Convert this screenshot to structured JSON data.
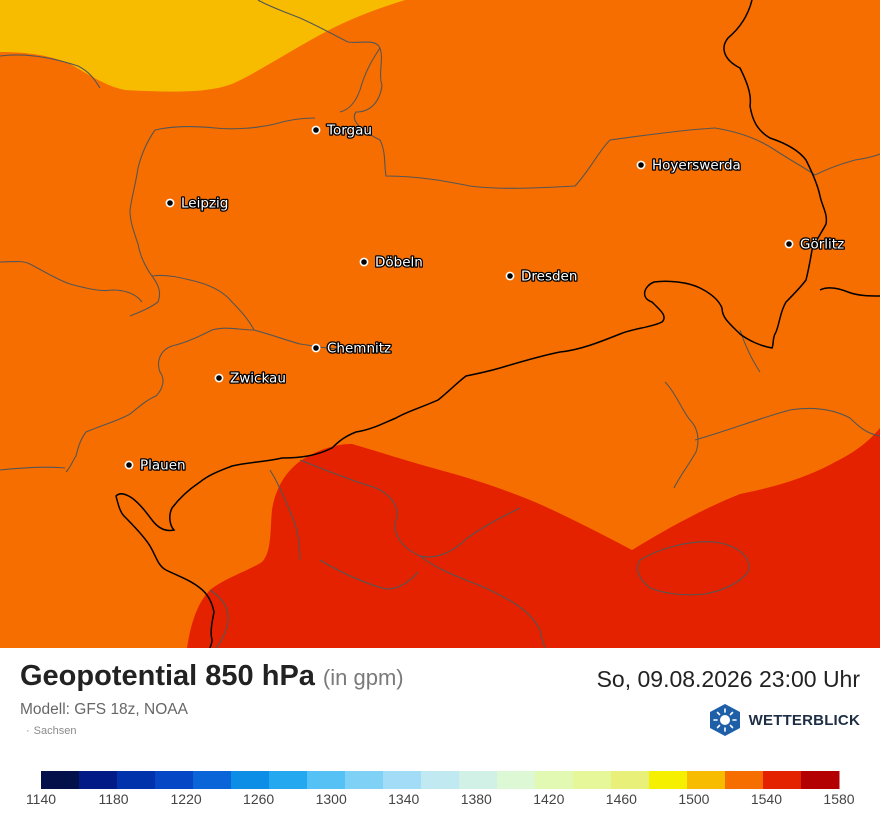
{
  "map": {
    "cities": [
      {
        "name": "Torgau",
        "pos": [
          316,
          130
        ]
      },
      {
        "name": "Hoyerswerda",
        "pos": [
          641,
          165
        ]
      },
      {
        "name": "Leipzig",
        "pos": [
          170,
          203
        ]
      },
      {
        "name": "Görlitz",
        "pos": [
          789,
          244
        ]
      },
      {
        "name": "Döbeln",
        "pos": [
          364,
          262
        ]
      },
      {
        "name": "Dresden",
        "pos": [
          510,
          276
        ]
      },
      {
        "name": "Chemnitz",
        "pos": [
          316,
          348
        ]
      },
      {
        "name": "Zwickau",
        "pos": [
          219,
          378
        ]
      },
      {
        "name": "Plauen",
        "pos": [
          129,
          465
        ]
      }
    ],
    "field_colors": {
      "band_1500_1520": "#f7bb00",
      "band_1520_1540": "#f76e00",
      "band_1540_1560": "#e52200"
    }
  },
  "footer": {
    "title": "Geopotential 850 hPa",
    "unit": "(in gpm)",
    "datetime": "So, 09.08.2026 23:00 Uhr",
    "model": "Modell: GFS 18z, NOAA",
    "region": "Sachsen",
    "brand": "WETTERBLICK"
  },
  "legend": {
    "colors": [
      "#04104a",
      "#021a86",
      "#0231ac",
      "#0647c6",
      "#0a66d8",
      "#0c8de6",
      "#24a8ef",
      "#55c1f4",
      "#7fd1f6",
      "#a2dcf6",
      "#c0e9f1",
      "#d2f1e6",
      "#dcf8d4",
      "#e2f9b4",
      "#e6f79a",
      "#e8f07a",
      "#f5ef00",
      "#f7bb00",
      "#f76e00",
      "#e52200",
      "#b30000"
    ],
    "labels": [
      "1140",
      "1180",
      "1220",
      "1260",
      "1300",
      "1340",
      "1380",
      "1420",
      "1460",
      "1500",
      "1540",
      "1580"
    ]
  }
}
